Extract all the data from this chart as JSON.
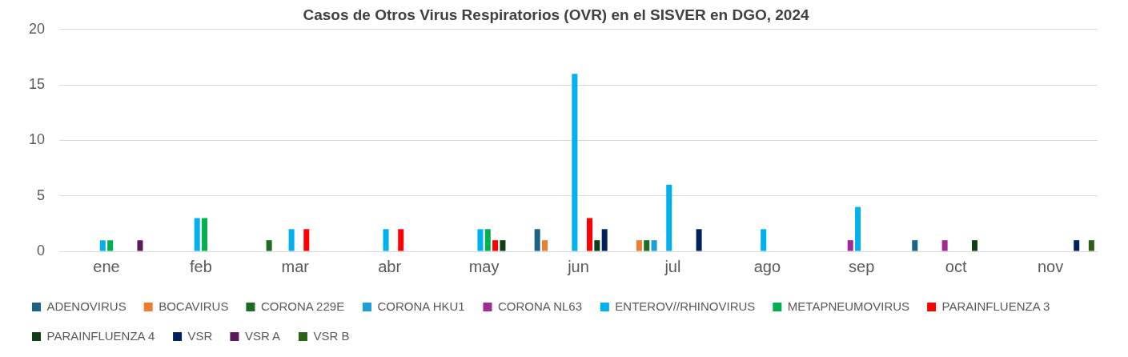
{
  "chart_data": {
    "type": "bar",
    "title": "Casos de Otros Virus Respiratorios (OVR) en el SISVER en DGO, 2024",
    "categories": [
      "ene",
      "feb",
      "mar",
      "abr",
      "may",
      "jun",
      "jul",
      "ago",
      "sep",
      "oct",
      "nov"
    ],
    "series": [
      {
        "name": "ADENOVIRUS",
        "color": "#1a6387",
        "values": [
          0,
          0,
          0,
          0,
          0,
          2,
          0,
          0,
          0,
          1,
          0
        ]
      },
      {
        "name": "BOCAVIRUS",
        "color": "#ed7d31",
        "values": [
          0,
          0,
          0,
          0,
          0,
          1,
          1,
          0,
          0,
          0,
          0
        ]
      },
      {
        "name": "CORONA 229E",
        "color": "#1e6b24",
        "values": [
          0,
          0,
          1,
          0,
          0,
          0,
          1,
          0,
          0,
          0,
          0
        ]
      },
      {
        "name": "CORONA HKU1",
        "color": "#1b9fd6",
        "values": [
          0,
          0,
          0,
          0,
          0,
          0,
          1,
          0,
          0,
          0,
          0
        ]
      },
      {
        "name": "CORONA NL63",
        "color": "#a02b93",
        "values": [
          0,
          0,
          0,
          0,
          0,
          0,
          0,
          0,
          1,
          1,
          0
        ]
      },
      {
        "name": "ENTEROV//RHINOVIRUS",
        "color": "#00b0f0",
        "values": [
          1,
          3,
          2,
          2,
          2,
          16,
          6,
          2,
          4,
          0,
          0
        ]
      },
      {
        "name": "METAPNEUMOVIRUS",
        "color": "#00b050",
        "values": [
          1,
          3,
          0,
          0,
          2,
          0,
          0,
          0,
          0,
          0,
          0
        ]
      },
      {
        "name": "PARAINFLUENZA 3",
        "color": "#ff0000",
        "values": [
          0,
          0,
          2,
          2,
          1,
          3,
          0,
          0,
          0,
          0,
          0
        ]
      },
      {
        "name": "PARAINFLUENZA 4",
        "color": "#0f3f17",
        "values": [
          0,
          0,
          0,
          0,
          1,
          1,
          0,
          0,
          0,
          1,
          0
        ]
      },
      {
        "name": "VSR",
        "color": "#002060",
        "values": [
          0,
          0,
          0,
          0,
          0,
          2,
          2,
          0,
          0,
          0,
          1
        ]
      },
      {
        "name": "VSR A",
        "color": "#5b1a5c",
        "values": [
          1,
          0,
          0,
          0,
          0,
          0,
          0,
          0,
          0,
          0,
          0
        ]
      },
      {
        "name": "VSR B",
        "color": "#2d6119",
        "values": [
          0,
          0,
          0,
          0,
          0,
          0,
          0,
          0,
          0,
          0,
          1
        ]
      }
    ],
    "ylim": [
      0,
      20
    ],
    "yticks": [
      0,
      5,
      10,
      15,
      20
    ],
    "grid": "y",
    "legend": "bottom"
  }
}
